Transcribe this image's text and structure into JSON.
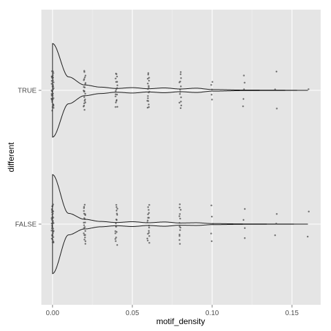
{
  "chart_data": {
    "type": "scatter",
    "subtype": "violin-with-jitter",
    "orientation": "horizontal",
    "title": "",
    "xlabel": "motif_density",
    "ylabel": "different",
    "xlim": [
      -0.007,
      0.168
    ],
    "x_ticks": [
      0.0,
      0.05,
      0.1,
      0.15
    ],
    "x_tick_labels": [
      "0.00",
      "0.05",
      "0.10",
      "0.15"
    ],
    "categories": [
      "TRUE",
      "FALSE"
    ],
    "grid": true,
    "legend": "none",
    "colors": {
      "panel": "#e5e5e5",
      "grid_major": "#ffffff",
      "grid_minor": "#f2f2f2",
      "points": "#444444",
      "violin": "#1a1a1a"
    },
    "series": [
      {
        "name": "TRUE",
        "violin_profile": [
          [
            0.0,
            0.87
          ],
          [
            0.01,
            0.25
          ],
          [
            0.02,
            0.1
          ],
          [
            0.03,
            0.06
          ],
          [
            0.04,
            0.035
          ],
          [
            0.05,
            0.05
          ],
          [
            0.06,
            0.03
          ],
          [
            0.07,
            0.045
          ],
          [
            0.08,
            0.025
          ],
          [
            0.09,
            0.04
          ],
          [
            0.1,
            0.015
          ],
          [
            0.12,
            0.005
          ],
          [
            0.14,
            0.003
          ],
          [
            0.16,
            0.0
          ]
        ],
        "point_groups": [
          {
            "x": 0.0,
            "count": 40,
            "spread": 0.54
          },
          {
            "x": 0.02,
            "count": 22,
            "spread": 0.54
          },
          {
            "x": 0.04,
            "count": 18,
            "spread": 0.5
          },
          {
            "x": 0.06,
            "count": 18,
            "spread": 0.5
          },
          {
            "x": 0.08,
            "count": 14,
            "spread": 0.54
          },
          {
            "x": 0.1,
            "count": 5,
            "spread": 0.26
          },
          {
            "x": 0.12,
            "count": 5,
            "spread": 0.44
          },
          {
            "x": 0.14,
            "count": 3,
            "spread": 0.56
          },
          {
            "x": 0.16,
            "count": 1,
            "spread": 0.44
          }
        ]
      },
      {
        "name": "FALSE",
        "violin_profile": [
          [
            0.0,
            0.92
          ],
          [
            0.01,
            0.2
          ],
          [
            0.02,
            0.09
          ],
          [
            0.03,
            0.05
          ],
          [
            0.04,
            0.03
          ],
          [
            0.05,
            0.045
          ],
          [
            0.06,
            0.025
          ],
          [
            0.07,
            0.04
          ],
          [
            0.08,
            0.02
          ],
          [
            0.09,
            0.025
          ],
          [
            0.1,
            0.01
          ],
          [
            0.12,
            0.004
          ],
          [
            0.14,
            0.002
          ],
          [
            0.16,
            0.0
          ]
        ],
        "point_groups": [
          {
            "x": 0.0,
            "count": 40,
            "spread": 0.56
          },
          {
            "x": 0.02,
            "count": 22,
            "spread": 0.54
          },
          {
            "x": 0.04,
            "count": 18,
            "spread": 0.56
          },
          {
            "x": 0.06,
            "count": 18,
            "spread": 0.54
          },
          {
            "x": 0.08,
            "count": 14,
            "spread": 0.54
          },
          {
            "x": 0.1,
            "count": 5,
            "spread": 0.5
          },
          {
            "x": 0.12,
            "count": 4,
            "spread": 0.4
          },
          {
            "x": 0.14,
            "count": 3,
            "spread": 0.28
          },
          {
            "x": 0.16,
            "count": 2,
            "spread": 0.34
          }
        ]
      }
    ]
  }
}
